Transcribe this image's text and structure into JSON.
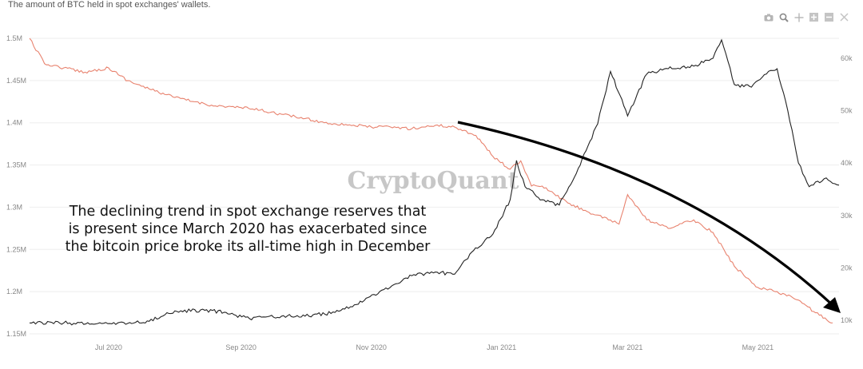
{
  "header": {
    "title": "The amount of BTC held in spot exchanges' wallets."
  },
  "toolbar": {
    "icons": [
      "camera-icon",
      "zoom-icon",
      "pan-icon",
      "zoom-in-icon",
      "zoom-out-icon",
      "autoscale-icon"
    ]
  },
  "watermark": "CryptoQuant",
  "annotation": {
    "lines": [
      "The declining trend in spot exchange reserves that",
      "is present since March 2020 has exacerbated since",
      "the bitcoin price broke its all-time high in December"
    ]
  },
  "colors": {
    "reserve": "#e8826e",
    "price": "#222222",
    "arrow": "#000000",
    "grid": "#eeeeee"
  },
  "chart_data": {
    "type": "line",
    "title": "The amount of BTC held in spot exchanges' wallets.",
    "x_ticks": [
      "Jul 2020",
      "Sep 2020",
      "Nov 2020",
      "Jan 2021",
      "Mar 2021",
      "May 2021"
    ],
    "y_left_ticks": [
      "1.15M",
      "1.2M",
      "1.25M",
      "1.3M",
      "1.35M",
      "1.4M",
      "1.45M",
      "1.5M"
    ],
    "y_right_ticks": [
      "10k",
      "20k",
      "30k",
      "40k",
      "50k",
      "60k"
    ],
    "y_left_range": [
      1150000,
      1500000
    ],
    "y_right_range": [
      10000,
      60000
    ],
    "x_range": [
      "2020-05-25",
      "2021-06-08"
    ],
    "grid": "horizontal",
    "series": [
      {
        "axis": "left",
        "color": "#e8826e",
        "x": [
          "2020-05-25",
          "2020-06-01",
          "2020-06-10",
          "2020-06-20",
          "2020-07-01",
          "2020-07-10",
          "2020-07-20",
          "2020-08-01",
          "2020-08-10",
          "2020-08-20",
          "2020-09-01",
          "2020-09-10",
          "2020-09-20",
          "2020-10-01",
          "2020-10-10",
          "2020-10-20",
          "2020-11-01",
          "2020-11-10",
          "2020-11-20",
          "2020-12-01",
          "2020-12-10",
          "2020-12-20",
          "2020-12-28",
          "2021-01-05",
          "2021-01-10",
          "2021-01-15",
          "2021-01-20",
          "2021-02-01",
          "2021-02-10",
          "2021-02-20",
          "2021-02-25",
          "2021-03-01",
          "2021-03-10",
          "2021-03-20",
          "2021-04-01",
          "2021-04-10",
          "2021-04-20",
          "2021-05-01",
          "2021-05-10",
          "2021-05-20",
          "2021-05-28",
          "2021-06-05"
        ],
        "values": [
          1500000,
          1470000,
          1465000,
          1460000,
          1465000,
          1450000,
          1440000,
          1430000,
          1425000,
          1420000,
          1418000,
          1415000,
          1410000,
          1405000,
          1400000,
          1398000,
          1395000,
          1395000,
          1393000,
          1397000,
          1395000,
          1385000,
          1360000,
          1345000,
          1355000,
          1325000,
          1325000,
          1305000,
          1295000,
          1285000,
          1280000,
          1315000,
          1285000,
          1275000,
          1285000,
          1270000,
          1230000,
          1205000,
          1200000,
          1190000,
          1175000,
          1163000
        ]
      },
      {
        "axis": "right",
        "color": "#222222",
        "x": [
          "2020-05-25",
          "2020-06-10",
          "2020-06-25",
          "2020-07-10",
          "2020-07-20",
          "2020-08-01",
          "2020-08-15",
          "2020-08-25",
          "2020-09-05",
          "2020-09-20",
          "2020-10-01",
          "2020-10-15",
          "2020-10-25",
          "2020-11-05",
          "2020-11-20",
          "2020-12-01",
          "2020-12-10",
          "2020-12-18",
          "2020-12-28",
          "2021-01-05",
          "2021-01-08",
          "2021-01-12",
          "2021-01-20",
          "2021-01-28",
          "2021-02-05",
          "2021-02-15",
          "2021-02-21",
          "2021-03-01",
          "2021-03-10",
          "2021-03-20",
          "2021-04-01",
          "2021-04-10",
          "2021-04-14",
          "2021-04-20",
          "2021-04-28",
          "2021-05-05",
          "2021-05-10",
          "2021-05-15",
          "2021-05-20",
          "2021-05-25",
          "2021-06-01",
          "2021-06-08"
        ],
        "values": [
          9500,
          9500,
          9300,
          9400,
          9800,
          11800,
          11900,
          11500,
          10300,
          10800,
          10800,
          11500,
          13000,
          15500,
          18500,
          19200,
          18800,
          23000,
          26500,
          33000,
          40500,
          35500,
          33000,
          32000,
          38000,
          47500,
          57500,
          49000,
          57000,
          58000,
          58500,
          60000,
          63500,
          55000,
          54500,
          57000,
          58000,
          50000,
          40000,
          35500,
          37000,
          35800
        ]
      }
    ]
  }
}
